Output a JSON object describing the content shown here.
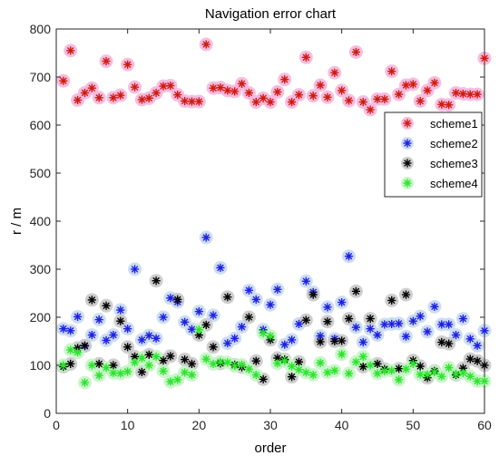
{
  "chart_data": {
    "type": "scatter",
    "title": "Navigation error chart",
    "xlabel": "order",
    "ylabel": "r / m",
    "xlim": [
      0,
      60
    ],
    "ylim": [
      0,
      800
    ],
    "xticks": [
      0,
      10,
      20,
      30,
      40,
      50,
      60
    ],
    "yticks": [
      0,
      100,
      200,
      300,
      400,
      500,
      600,
      700,
      800
    ],
    "grid": false,
    "legend_position": "top-right",
    "marker": "*",
    "x": [
      1,
      2,
      3,
      4,
      5,
      6,
      7,
      8,
      9,
      10,
      11,
      12,
      13,
      14,
      15,
      16,
      17,
      18,
      19,
      20,
      21,
      22,
      23,
      24,
      25,
      26,
      27,
      28,
      29,
      30,
      31,
      32,
      33,
      34,
      35,
      36,
      37,
      38,
      39,
      40,
      41,
      42,
      43,
      44,
      45,
      46,
      47,
      48,
      49,
      50,
      51,
      52,
      53,
      54,
      55,
      56,
      57,
      58,
      59,
      60
    ],
    "series": [
      {
        "name": "scheme1",
        "color": "#d11a0f",
        "halo": "#f4b3dc",
        "values": [
          692,
          755,
          652,
          667,
          677,
          657,
          733,
          657,
          662,
          726,
          679,
          653,
          656,
          667,
          681,
          682,
          663,
          650,
          649,
          649,
          768,
          677,
          678,
          672,
          670,
          686,
          667,
          648,
          656,
          648,
          669,
          695,
          648,
          663,
          741,
          661,
          683,
          658,
          709,
          672,
          651,
          752,
          648,
          632,
          654,
          654,
          712,
          664,
          683,
          685,
          650,
          672,
          688,
          643,
          642,
          667,
          665,
          664,
          664,
          739
        ]
      },
      {
        "name": "scheme2",
        "color": "#1f1fe6",
        "halo": "#c4d8f0",
        "values": [
          176,
          172,
          201,
          140,
          163,
          195,
          152,
          163,
          215,
          176,
          300,
          153,
          162,
          156,
          200,
          240,
          232,
          190,
          175,
          212,
          366,
          204,
          303,
          146,
          156,
          180,
          256,
          237,
          174,
          226,
          258,
          143,
          153,
          186,
          275,
          252,
          161,
          221,
          155,
          231,
          327,
          179,
          148,
          176,
          163,
          185,
          186,
          187,
          160,
          192,
          202,
          170,
          222,
          185,
          185,
          163,
          197,
          155,
          141,
          172
        ]
      },
      {
        "name": "scheme3",
        "color": "#000000",
        "halo": "#c6c6c6",
        "values": [
          97,
          103,
          136,
          141,
          236,
          103,
          224,
          100,
          192,
          138,
          118,
          86,
          122,
          276,
          110,
          119,
          237,
          112,
          103,
          163,
          184,
          138,
          104,
          242,
          101,
          96,
          200,
          109,
          71,
          153,
          115,
          112,
          76,
          107,
          194,
          247,
          149,
          191,
          150,
          151,
          197,
          254,
          97,
          197,
          103,
          92,
          235,
          93,
          247,
          110,
          98,
          74,
          88,
          148,
          145,
          80,
          94,
          113,
          109,
          100
        ]
      },
      {
        "name": "scheme4",
        "color": "#2ae62a",
        "halo": "#c3f5c3",
        "values": [
          100,
          132,
          127,
          64,
          100,
          79,
          95,
          84,
          83,
          87,
          106,
          115,
          100,
          118,
          88,
          66,
          70,
          85,
          80,
          174,
          113,
          103,
          107,
          106,
          99,
          101,
          92,
          80,
          167,
          161,
          104,
          109,
          98,
          91,
          85,
          80,
          105,
          85,
          89,
          123,
          83,
          107,
          118,
          100,
          83,
          88,
          89,
          70,
          92,
          103,
          81,
          81,
          86,
          77,
          95,
          82,
          84,
          77,
          67,
          67
        ]
      }
    ]
  }
}
